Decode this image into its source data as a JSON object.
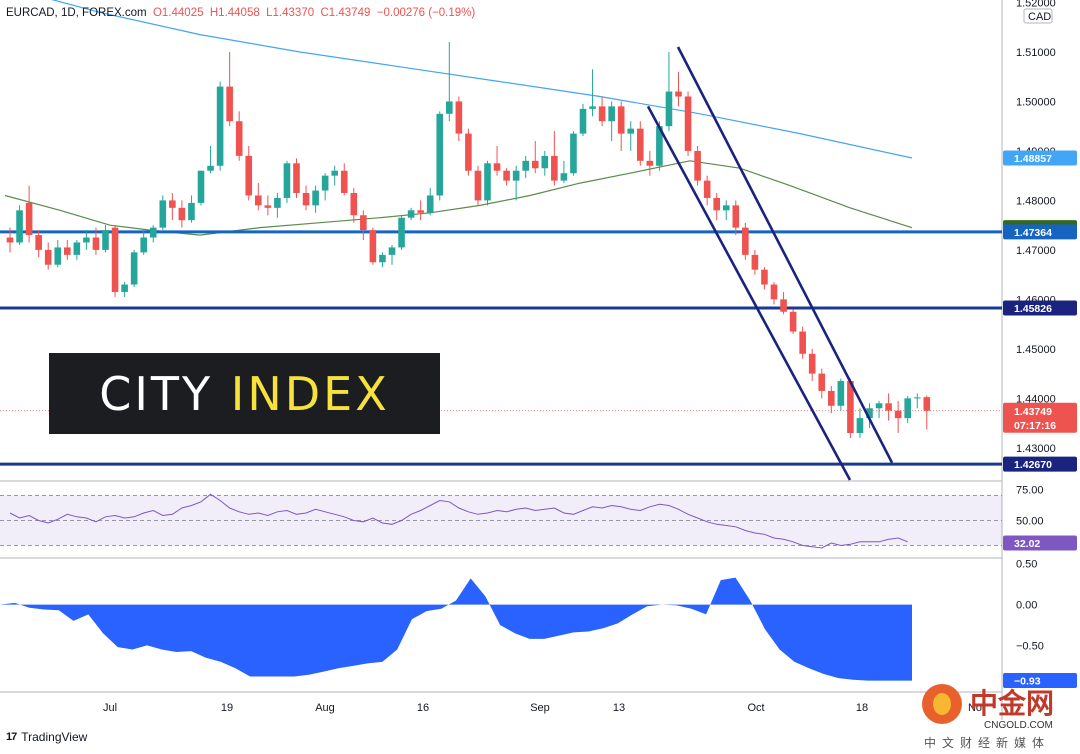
{
  "header": {
    "symbol": "EURCAD, 1D, FOREX.com",
    "open": "O1.44025",
    "high": "H1.44058",
    "low": "L1.43370",
    "close": "C1.43749",
    "change": "−0.00276 (−0.19%)"
  },
  "currency_label": "CAD",
  "logo": {
    "part1": "CITY",
    "part2": "INDEX"
  },
  "footer": {
    "brand": "TradingView",
    "brand_mark": "17"
  },
  "watermark": {
    "name": "中金网",
    "url": "CNGOLD.COM",
    "sub": "中文财经新媒体"
  },
  "colors": {
    "up": "#26a69a",
    "down": "#ef5350",
    "ma_long": "#42a5f5",
    "ma_short": "#5b8c4a",
    "support": "#1565c0",
    "channel": "#1a237e",
    "rsi": "#7e57c2",
    "osc_fill": "#2962ff"
  },
  "chart_data": [
    {
      "type": "candlestick",
      "title": "EURCAD, 1D, FOREX.com",
      "x_ticks": [
        "Jul",
        "19",
        "Aug",
        "16",
        "Sep",
        "13",
        "Oct",
        "18",
        "No"
      ],
      "y_ticks": [
        "1.52000",
        "1.51000",
        "1.50000",
        "1.49000",
        "1.48000",
        "1.47000",
        "1.46000",
        "1.45000",
        "1.44000",
        "1.43000"
      ],
      "ylim": [
        1.4235,
        1.5205
      ],
      "last_price": {
        "value": 1.43749,
        "label": "1.43749",
        "countdown": "07:17:16"
      },
      "price_tags": [
        {
          "value": 1.48857,
          "label": "1.48857",
          "color": "#42a5f5"
        },
        {
          "value": 1.47449,
          "label": "1.47449",
          "color": "#33691e"
        },
        {
          "value": 1.47364,
          "label": "1.47364",
          "color": "#1565c0"
        },
        {
          "value": 1.45826,
          "label": "1.45826",
          "color": "#1a237e"
        },
        {
          "value": 1.4267,
          "label": "1.42670",
          "color": "#1a237e"
        }
      ],
      "horizontal_levels": [
        1.47364,
        1.45826,
        1.4267
      ],
      "candles": [
        [
          1.4725,
          1.4745,
          1.4695,
          1.4715
        ],
        [
          1.4715,
          1.479,
          1.471,
          1.478
        ],
        [
          1.4795,
          1.483,
          1.4715,
          1.473
        ],
        [
          1.473,
          1.474,
          1.4685,
          1.47
        ],
        [
          1.47,
          1.4715,
          1.466,
          1.467
        ],
        [
          1.467,
          1.472,
          1.4665,
          1.4705
        ],
        [
          1.4705,
          1.472,
          1.468,
          1.469
        ],
        [
          1.469,
          1.472,
          1.468,
          1.4715
        ],
        [
          1.4715,
          1.474,
          1.47,
          1.4725
        ],
        [
          1.4725,
          1.4745,
          1.469,
          1.47
        ],
        [
          1.47,
          1.475,
          1.4695,
          1.474
        ],
        [
          1.4745,
          1.475,
          1.4605,
          1.4615
        ],
        [
          1.4615,
          1.4635,
          1.4605,
          1.463
        ],
        [
          1.463,
          1.47,
          1.4625,
          1.4695
        ],
        [
          1.4695,
          1.474,
          1.469,
          1.4725
        ],
        [
          1.4725,
          1.475,
          1.4715,
          1.4745
        ],
        [
          1.4745,
          1.481,
          1.474,
          1.48
        ],
        [
          1.48,
          1.4815,
          1.476,
          1.4785
        ],
        [
          1.4785,
          1.48,
          1.4745,
          1.476
        ],
        [
          1.476,
          1.481,
          1.4755,
          1.4795
        ],
        [
          1.4795,
          1.486,
          1.479,
          1.486
        ],
        [
          1.486,
          1.491,
          1.4855,
          1.487
        ],
        [
          1.487,
          1.504,
          1.486,
          1.503
        ],
        [
          1.503,
          1.51,
          1.495,
          1.496
        ],
        [
          1.496,
          1.498,
          1.488,
          1.489
        ],
        [
          1.489,
          1.491,
          1.48,
          1.481
        ],
        [
          1.481,
          1.4835,
          1.478,
          1.479
        ],
        [
          1.479,
          1.481,
          1.477,
          1.4785
        ],
        [
          1.4785,
          1.4815,
          1.4765,
          1.4805
        ],
        [
          1.4805,
          1.488,
          1.4795,
          1.4875
        ],
        [
          1.4875,
          1.4885,
          1.4805,
          1.4815
        ],
        [
          1.4815,
          1.483,
          1.478,
          1.479
        ],
        [
          1.479,
          1.483,
          1.4775,
          1.482
        ],
        [
          1.482,
          1.4855,
          1.48,
          1.485
        ],
        [
          1.485,
          1.487,
          1.483,
          1.486
        ],
        [
          1.486,
          1.4875,
          1.481,
          1.4815
        ],
        [
          1.4815,
          1.4825,
          1.4755,
          1.477
        ],
        [
          1.477,
          1.478,
          1.472,
          1.474
        ],
        [
          1.474,
          1.4745,
          1.467,
          1.4675
        ],
        [
          1.4675,
          1.4695,
          1.4665,
          1.469
        ],
        [
          1.469,
          1.471,
          1.467,
          1.4705
        ],
        [
          1.4705,
          1.477,
          1.47,
          1.4765
        ],
        [
          1.4765,
          1.4785,
          1.476,
          1.478
        ],
        [
          1.478,
          1.48,
          1.476,
          1.4775
        ],
        [
          1.4775,
          1.4825,
          1.477,
          1.481
        ],
        [
          1.481,
          1.498,
          1.48,
          1.4975
        ],
        [
          1.4975,
          1.512,
          1.496,
          1.5
        ],
        [
          1.5,
          1.501,
          1.492,
          1.4935
        ],
        [
          1.4935,
          1.4945,
          1.485,
          1.486
        ],
        [
          1.486,
          1.487,
          1.479,
          1.48
        ],
        [
          1.48,
          1.488,
          1.479,
          1.4875
        ],
        [
          1.4875,
          1.491,
          1.485,
          1.486
        ],
        [
          1.486,
          1.4865,
          1.483,
          1.484
        ],
        [
          1.484,
          1.487,
          1.48,
          1.486
        ],
        [
          1.486,
          1.489,
          1.4845,
          1.488
        ],
        [
          1.488,
          1.492,
          1.4855,
          1.4865
        ],
        [
          1.4865,
          1.49,
          1.485,
          1.489
        ],
        [
          1.489,
          1.494,
          1.483,
          1.484
        ],
        [
          1.484,
          1.488,
          1.4835,
          1.4855
        ],
        [
          1.4855,
          1.494,
          1.485,
          1.4935
        ],
        [
          1.4935,
          1.4995,
          1.493,
          1.4985
        ],
        [
          1.4985,
          1.5065,
          1.497,
          1.499
        ],
        [
          1.499,
          1.501,
          1.495,
          1.496
        ],
        [
          1.496,
          1.5,
          1.492,
          1.499
        ],
        [
          1.499,
          1.5,
          1.49,
          1.4935
        ],
        [
          1.4935,
          1.496,
          1.49,
          1.4945
        ],
        [
          1.4945,
          1.496,
          1.487,
          1.488
        ],
        [
          1.488,
          1.49,
          1.485,
          1.487
        ],
        [
          1.487,
          1.496,
          1.486,
          1.495
        ],
        [
          1.495,
          1.51,
          1.494,
          1.502
        ],
        [
          1.502,
          1.506,
          1.499,
          1.501
        ],
        [
          1.501,
          1.502,
          1.489,
          1.49
        ],
        [
          1.49,
          1.491,
          1.483,
          1.484
        ],
        [
          1.484,
          1.485,
          1.479,
          1.4805
        ],
        [
          1.4805,
          1.4815,
          1.476,
          1.478
        ],
        [
          1.478,
          1.48,
          1.476,
          1.479
        ],
        [
          1.479,
          1.48,
          1.473,
          1.4745
        ],
        [
          1.4745,
          1.4755,
          1.468,
          1.469
        ],
        [
          1.469,
          1.47,
          1.465,
          1.466
        ],
        [
          1.466,
          1.4665,
          1.462,
          1.463
        ],
        [
          1.463,
          1.4635,
          1.459,
          1.46
        ],
        [
          1.46,
          1.4615,
          1.457,
          1.4575
        ],
        [
          1.4575,
          1.458,
          1.453,
          1.4535
        ],
        [
          1.4535,
          1.4545,
          1.448,
          1.449
        ],
        [
          1.449,
          1.45,
          1.4435,
          1.445
        ],
        [
          1.445,
          1.446,
          1.44,
          1.4415
        ],
        [
          1.4415,
          1.4425,
          1.437,
          1.4385
        ],
        [
          1.4385,
          1.444,
          1.4375,
          1.4435
        ],
        [
          1.4435,
          1.444,
          1.432,
          1.433
        ],
        [
          1.433,
          1.438,
          1.432,
          1.436
        ],
        [
          1.436,
          1.439,
          1.434,
          1.438
        ],
        [
          1.438,
          1.4395,
          1.436,
          1.439
        ],
        [
          1.439,
          1.441,
          1.4355,
          1.4375
        ],
        [
          1.4375,
          1.4395,
          1.433,
          1.436
        ],
        [
          1.436,
          1.4405,
          1.435,
          1.44
        ],
        [
          1.44,
          1.441,
          1.438,
          1.4402
        ],
        [
          1.44025,
          1.44058,
          1.4337,
          1.43749
        ]
      ],
      "ma_long": [
        [
          -2,
          1.5235
        ],
        [
          100,
          1.518
        ],
        [
          200,
          1.5135
        ],
        [
          300,
          1.51
        ],
        [
          400,
          1.507
        ],
        [
          500,
          1.504
        ],
        [
          600,
          1.501
        ],
        [
          700,
          1.4975
        ],
        [
          800,
          1.4935
        ],
        [
          912,
          1.48857
        ]
      ],
      "ma_short": [
        [
          5,
          1.481
        ],
        [
          60,
          1.478
        ],
        [
          110,
          1.475
        ],
        [
          150,
          1.474
        ],
        [
          200,
          1.473
        ],
        [
          260,
          1.4745
        ],
        [
          320,
          1.4755
        ],
        [
          380,
          1.4765
        ],
        [
          430,
          1.4775
        ],
        [
          480,
          1.479
        ],
        [
          530,
          1.481
        ],
        [
          580,
          1.4835
        ],
        [
          630,
          1.4855
        ],
        [
          690,
          1.488
        ],
        [
          740,
          1.4865
        ],
        [
          790,
          1.483
        ],
        [
          850,
          1.4785
        ],
        [
          912,
          1.47449
        ]
      ],
      "channel_lines": [
        {
          "from": [
            678,
            1.511
          ],
          "to": [
            892,
            1.427
          ]
        },
        {
          "from": [
            648,
            1.499
          ],
          "to": [
            850,
            1.4235
          ]
        }
      ]
    },
    {
      "type": "line",
      "title": "",
      "ylim": [
        20,
        80
      ],
      "y_ticks": [
        "75.00",
        "50.00"
      ],
      "bands": [
        70,
        30
      ],
      "last_value": {
        "value": 32.02,
        "label": "32.02"
      },
      "values": [
        56,
        52,
        54,
        50,
        48,
        51,
        55,
        53,
        52,
        49,
        53,
        54,
        52,
        53,
        56,
        58,
        54,
        55,
        60,
        62,
        65,
        71,
        66,
        60,
        57,
        55,
        56,
        54,
        57,
        58,
        55,
        56,
        59,
        57,
        55,
        53,
        50,
        49,
        52,
        48,
        47,
        50,
        55,
        58,
        62,
        66,
        65,
        60,
        57,
        55,
        56,
        58,
        57,
        59,
        60,
        58,
        59,
        60,
        56,
        55,
        58,
        61,
        60,
        62,
        61,
        59,
        58,
        61,
        63,
        62,
        59,
        55,
        52,
        49,
        47,
        46,
        45,
        42,
        40,
        39,
        36,
        35,
        33,
        30,
        29,
        28,
        32,
        30,
        31,
        33,
        33,
        33,
        35,
        36,
        33
      ]
    },
    {
      "type": "area",
      "title": "",
      "ylim": [
        -1.07,
        0.57
      ],
      "y_ticks": [
        "0.50",
        "0.00",
        "−0.50"
      ],
      "last_value": {
        "value": -0.93,
        "label": "−0.93"
      },
      "values": [
        0,
        0.02,
        -0.04,
        -0.06,
        -0.07,
        -0.2,
        -0.12,
        -0.35,
        -0.52,
        -0.55,
        -0.5,
        -0.55,
        -0.58,
        -0.57,
        -0.65,
        -0.7,
        -0.78,
        -0.88,
        -0.88,
        -0.88,
        -0.88,
        -0.86,
        -0.82,
        -0.78,
        -0.75,
        -0.72,
        -0.7,
        -0.55,
        -0.18,
        -0.08,
        -0.05,
        0.05,
        0.32,
        0.1,
        -0.25,
        -0.35,
        -0.42,
        -0.42,
        -0.38,
        -0.34,
        -0.33,
        -0.29,
        -0.23,
        -0.12,
        -0.02,
        0.0,
        -0.01,
        -0.05,
        -0.12,
        0.3,
        0.33,
        0.05,
        -0.3,
        -0.55,
        -0.7,
        -0.78,
        -0.85,
        -0.9,
        -0.92,
        -0.93,
        -0.93,
        -0.93,
        -0.93
      ]
    }
  ]
}
